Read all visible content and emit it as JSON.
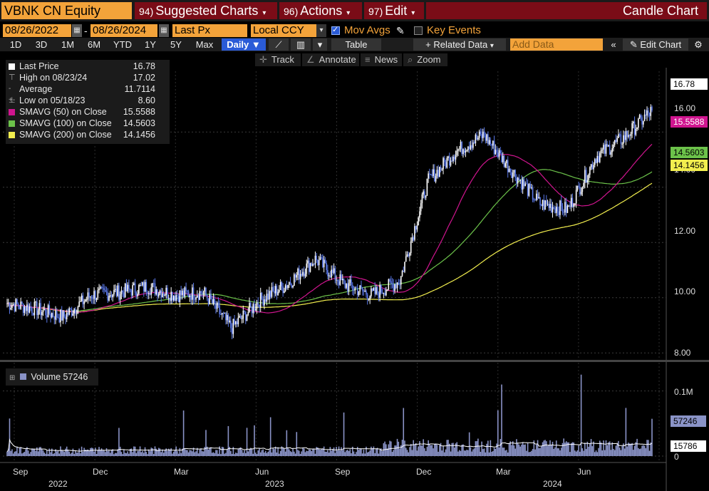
{
  "header": {
    "ticker": "VBNK CN Equity",
    "menus": [
      {
        "num": "94)",
        "label": "Suggested Charts"
      },
      {
        "num": "96)",
        "label": "Actions"
      },
      {
        "num": "97)",
        "label": "Edit"
      }
    ],
    "chart_type": "Candle Chart"
  },
  "controls": {
    "start_date": "08/26/2022",
    "end_date": "08/26/2024",
    "date_sep": "-",
    "price_field": "Last Px",
    "currency": "Local CCY",
    "mov_avgs_label": "Mov Avgs",
    "mov_avgs_checked": true,
    "key_events_label": "Key Events",
    "key_events_checked": false
  },
  "periods": [
    "1D",
    "3D",
    "1M",
    "6M",
    "YTD",
    "1Y",
    "5Y",
    "Max"
  ],
  "frequency": "Daily",
  "toolbar": {
    "table_label": "Table",
    "related_label": "+ Related Data",
    "add_data_placeholder": "Add Data",
    "edit_chart_label": "Edit Chart"
  },
  "tools": [
    "Track",
    "Annotate",
    "News",
    "Zoom"
  ],
  "legend": [
    {
      "name": "Last Price",
      "value": "16.78",
      "color": "#ffffff"
    },
    {
      "name": "High on 08/23/24",
      "value": "17.02",
      "color": ""
    },
    {
      "name": "Average",
      "value": "11.7114",
      "color": ""
    },
    {
      "name": "Low on 05/18/23",
      "value": "8.60",
      "color": ""
    },
    {
      "name": "SMAVG (50)  on Close",
      "value": "15.5588",
      "color": "#d0158f"
    },
    {
      "name": "SMAVG (100)  on Close",
      "value": "14.5603",
      "color": "#6cc24a"
    },
    {
      "name": "SMAVG (200)  on Close",
      "value": "14.1456",
      "color": "#f2ee4e"
    }
  ],
  "volume_legend": {
    "label": "Volume",
    "value": "57246"
  },
  "chart_data": {
    "type": "candlestick",
    "ylim": [
      7.8,
      18.2
    ],
    "yticks": [
      "8.00",
      "10.00",
      "12.00",
      "14.00",
      "16.00"
    ],
    "ytick_values": [
      8,
      10,
      12,
      14,
      16
    ],
    "last_labels": [
      {
        "text": "16.78",
        "value": 16.78,
        "bg": "#ffffff"
      },
      {
        "text": "15.5588",
        "value": 15.5588,
        "bg": "#d0158f"
      },
      {
        "text": "14.5603",
        "value": 14.5603,
        "bg": "#6cc24a"
      },
      {
        "text": "14.1456",
        "value": 14.1456,
        "bg": "#f2ee4e"
      }
    ],
    "x_months": [
      "Sep",
      "Dec",
      "Mar",
      "Jun",
      "Sep",
      "Dec",
      "Mar",
      "Jun"
    ],
    "x_years": [
      "2022",
      "2023",
      "2024"
    ],
    "close_path_months": [
      "2022-09",
      "2022-10",
      "2022-11",
      "2022-12",
      "2023-01",
      "2023-02",
      "2023-03",
      "2023-04",
      "2023-05",
      "2023-06",
      "2023-07",
      "2023-08",
      "2023-09",
      "2023-10",
      "2023-11",
      "2023-12",
      "2024-01",
      "2024-02",
      "2024-03",
      "2024-04",
      "2024-05",
      "2024-06",
      "2024-07",
      "2024-08"
    ],
    "close_approx": [
      9.8,
      9.6,
      9.3,
      10.1,
      10.2,
      10.4,
      10.1,
      10.2,
      8.9,
      9.9,
      10.5,
      11.4,
      10.5,
      10.1,
      10.6,
      14.2,
      15.3,
      15.9,
      14.6,
      13.4,
      13.2,
      15.1,
      15.8,
      16.78
    ],
    "sma50_end": 15.5588,
    "sma100_end": 14.5603,
    "sma200_end": 14.1456,
    "volume": {
      "ylim": [
        0,
        140000
      ],
      "yticks": [
        "0",
        "0.1M"
      ],
      "ytick_values": [
        0,
        100000
      ],
      "last_volume": 57246,
      "last_volume_label": "57246",
      "avg_volume": 15786,
      "avg_volume_label": "15786"
    }
  }
}
